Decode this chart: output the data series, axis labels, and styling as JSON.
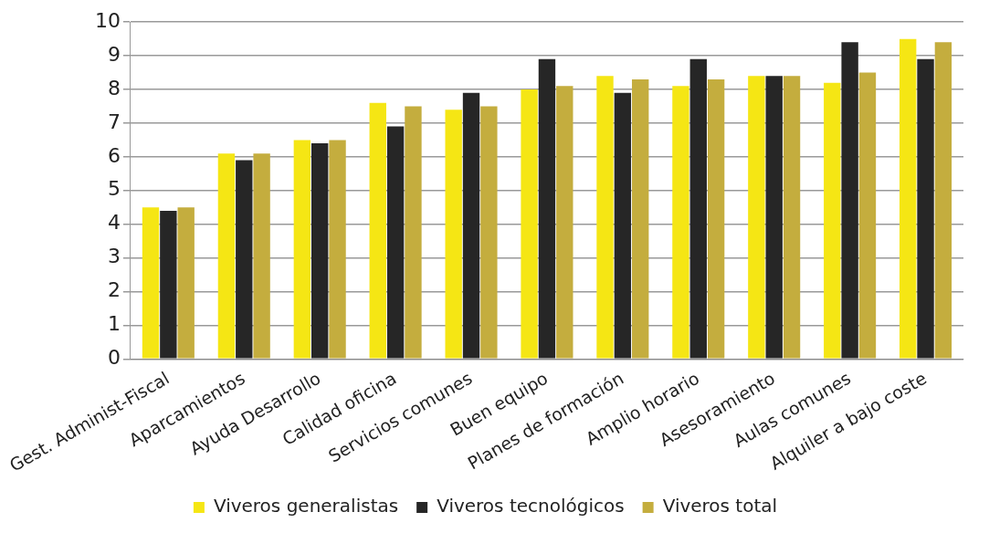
{
  "chart_data": {
    "type": "bar",
    "categories": [
      "Gest. Administ-Fiscal",
      "Aparcamientos",
      "Ayuda Desarrollo",
      "Calidad oficina",
      "Servicios comunes",
      "Buen equipo",
      "Planes de formación",
      "Amplio horario",
      "Asesoramiento",
      "Aulas comunes",
      "Alquiler a bajo coste"
    ],
    "series": [
      {
        "name": "Viveros generalistas",
        "color": "#f5e614",
        "values": [
          4.5,
          6.1,
          6.5,
          7.6,
          7.4,
          8.0,
          8.4,
          8.1,
          8.4,
          8.2,
          9.5
        ]
      },
      {
        "name": "Viveros tecnológicos",
        "color": "#262626",
        "values": [
          4.4,
          5.9,
          6.4,
          6.9,
          7.9,
          8.9,
          7.9,
          8.9,
          8.4,
          9.4,
          8.9
        ]
      },
      {
        "name": "Viveros total",
        "color": "#c4ad3e",
        "values": [
          4.5,
          6.1,
          6.5,
          7.5,
          7.5,
          8.1,
          8.3,
          8.3,
          8.4,
          8.5,
          9.4
        ]
      }
    ],
    "ylim": [
      0,
      10
    ],
    "yticks": [
      0,
      1,
      2,
      3,
      4,
      5,
      6,
      7,
      8,
      9,
      10
    ],
    "grid": "y",
    "legend": "bottom"
  }
}
